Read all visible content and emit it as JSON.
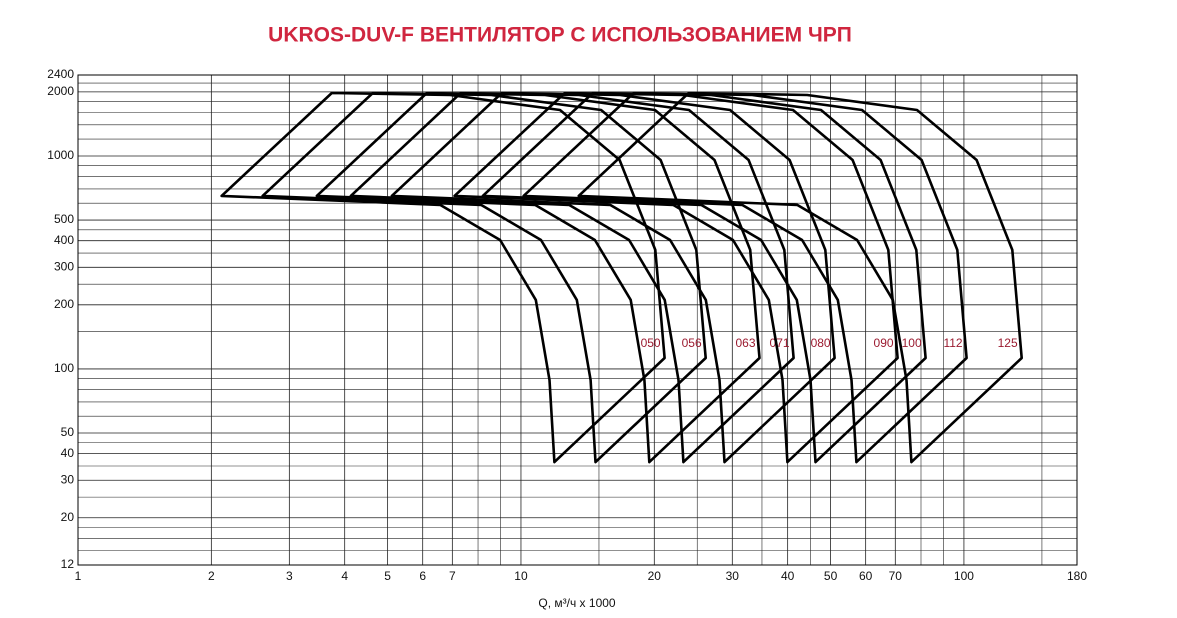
{
  "chart_data": {
    "type": "line",
    "title": "UKROS-DUV-F ВЕНТИЛЯТОР С ИСПОЛЬЗОВАНИЕМ ЧРП",
    "x_label": "Q, м³/ч x 1000",
    "x_scale": "log",
    "y_scale": "log",
    "grid": true,
    "xlim": [
      1,
      180
    ],
    "ylim": [
      12,
      2400
    ],
    "xticks": [
      1,
      2,
      3,
      4,
      5,
      6,
      7,
      10,
      20,
      30,
      40,
      50,
      60,
      70,
      100,
      180
    ],
    "yticks": [
      12,
      20,
      30,
      40,
      50,
      100,
      200,
      300,
      400,
      500,
      1000,
      2000,
      2400
    ],
    "x_minor_ticks": [
      8,
      9,
      15,
      25,
      35,
      45,
      80,
      90,
      150
    ],
    "y_minor_ticks": [
      14,
      16,
      18,
      25,
      35,
      45,
      60,
      70,
      80,
      90,
      150,
      250,
      350,
      450,
      600,
      700,
      800,
      900,
      1200,
      1400,
      1600,
      1800,
      2200
    ],
    "series": [
      {
        "name": "050",
        "color": "#000000",
        "x": [
          3.74,
          6.92,
          12.25,
          16.7,
          20.1,
          21.1,
          11.9,
          11.6,
          10.8,
          8.97,
          6.57,
          2.11
        ],
        "values": [
          1975,
          1933,
          1644,
          957,
          362,
          112.5,
          36.5,
          88.7,
          211,
          403,
          589,
          649
        ]
      },
      {
        "name": "056",
        "color": "#000000",
        "x": [
          4.63,
          8.57,
          15.17,
          20.67,
          24.88,
          26.12,
          14.73,
          14.36,
          13.37,
          11.1,
          8.13,
          2.61
        ],
        "values": [
          1975,
          1933,
          1644,
          957,
          362,
          112.5,
          36.5,
          88.7,
          211,
          403,
          589,
          649
        ]
      },
      {
        "name": "063",
        "color": "#000000",
        "x": [
          6.13,
          11.33,
          20.07,
          27.35,
          32.92,
          34.56,
          19.49,
          19.0,
          17.69,
          14.69,
          10.76,
          3.46
        ],
        "values": [
          1975,
          1933,
          1644,
          957,
          362,
          112.5,
          36.5,
          88.7,
          211,
          403,
          589,
          649
        ]
      },
      {
        "name": "071",
        "color": "#000000",
        "x": [
          7.31,
          13.53,
          23.95,
          32.65,
          39.3,
          41.25,
          23.26,
          22.68,
          21.11,
          17.54,
          12.84,
          4.13
        ],
        "values": [
          1975,
          1933,
          1644,
          957,
          362,
          112.5,
          36.5,
          88.7,
          211,
          403,
          589,
          649
        ]
      },
      {
        "name": "080",
        "color": "#000000",
        "x": [
          9.05,
          16.75,
          29.65,
          40.41,
          48.64,
          51.06,
          28.8,
          28.07,
          26.14,
          21.71,
          15.9,
          5.11
        ],
        "values": [
          1975,
          1933,
          1644,
          957,
          362,
          112.5,
          36.5,
          88.7,
          211,
          403,
          589,
          649
        ]
      },
      {
        "name": "090",
        "color": "#000000",
        "x": [
          12.56,
          23.23,
          41.12,
          56.06,
          67.48,
          70.83,
          39.95,
          38.94,
          36.26,
          30.11,
          22.06,
          7.08
        ],
        "values": [
          1975,
          1933,
          1644,
          957,
          362,
          112.5,
          36.5,
          88.7,
          211,
          403,
          589,
          649
        ]
      },
      {
        "name": "100",
        "color": "#000000",
        "x": [
          14.53,
          26.88,
          47.58,
          64.86,
          78.07,
          81.95,
          46.22,
          45.05,
          41.95,
          34.84,
          25.52,
          8.2
        ],
        "values": [
          1975,
          1933,
          1644,
          957,
          362,
          112.5,
          36.5,
          88.7,
          211,
          403,
          589,
          649
        ]
      },
      {
        "name": "112",
        "color": "#000000",
        "x": [
          17.97,
          33.26,
          58.87,
          80.26,
          96.6,
          101.4,
          57.19,
          55.75,
          51.9,
          43.11,
          31.58,
          10.14
        ],
        "values": [
          1975,
          1933,
          1644,
          957,
          362,
          112.5,
          36.5,
          88.7,
          211,
          403,
          589,
          649
        ]
      },
      {
        "name": "125",
        "color": "#000000",
        "x": [
          23.92,
          44.27,
          78.36,
          106.8,
          128.6,
          135.0,
          76.12,
          74.2,
          69.09,
          57.38,
          42.03,
          13.5
        ],
        "values": [
          1975,
          1933,
          1644,
          957,
          362,
          112.5,
          36.5,
          88.7,
          211,
          403,
          589,
          649
        ]
      }
    ],
    "label_color": "#9b1b30"
  }
}
